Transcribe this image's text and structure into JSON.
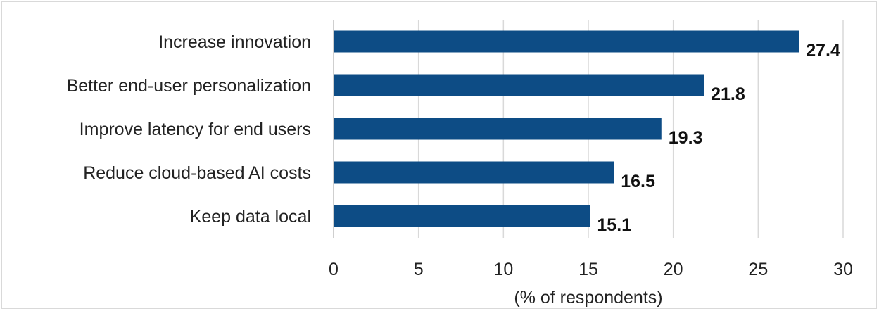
{
  "chart_data": {
    "type": "bar",
    "orientation": "horizontal",
    "categories": [
      "Increase innovation",
      "Better end-user personalization",
      "Improve latency for end users",
      "Reduce cloud-based AI costs",
      "Keep data local"
    ],
    "values": [
      27.4,
      21.8,
      19.3,
      16.5,
      15.1
    ],
    "value_labels": [
      "27.4",
      "21.8",
      "19.3",
      "16.5",
      "15.1"
    ],
    "title": "",
    "xlabel": "(% of respondents)",
    "ylabel": "",
    "xlim": [
      0,
      30
    ],
    "xticks": [
      0,
      5,
      10,
      15,
      20,
      25,
      30
    ],
    "xtick_labels": [
      "0",
      "5",
      "10",
      "15",
      "20",
      "25",
      "30"
    ],
    "grid": true,
    "legend": "none",
    "bar_color": "#0d4c85"
  }
}
